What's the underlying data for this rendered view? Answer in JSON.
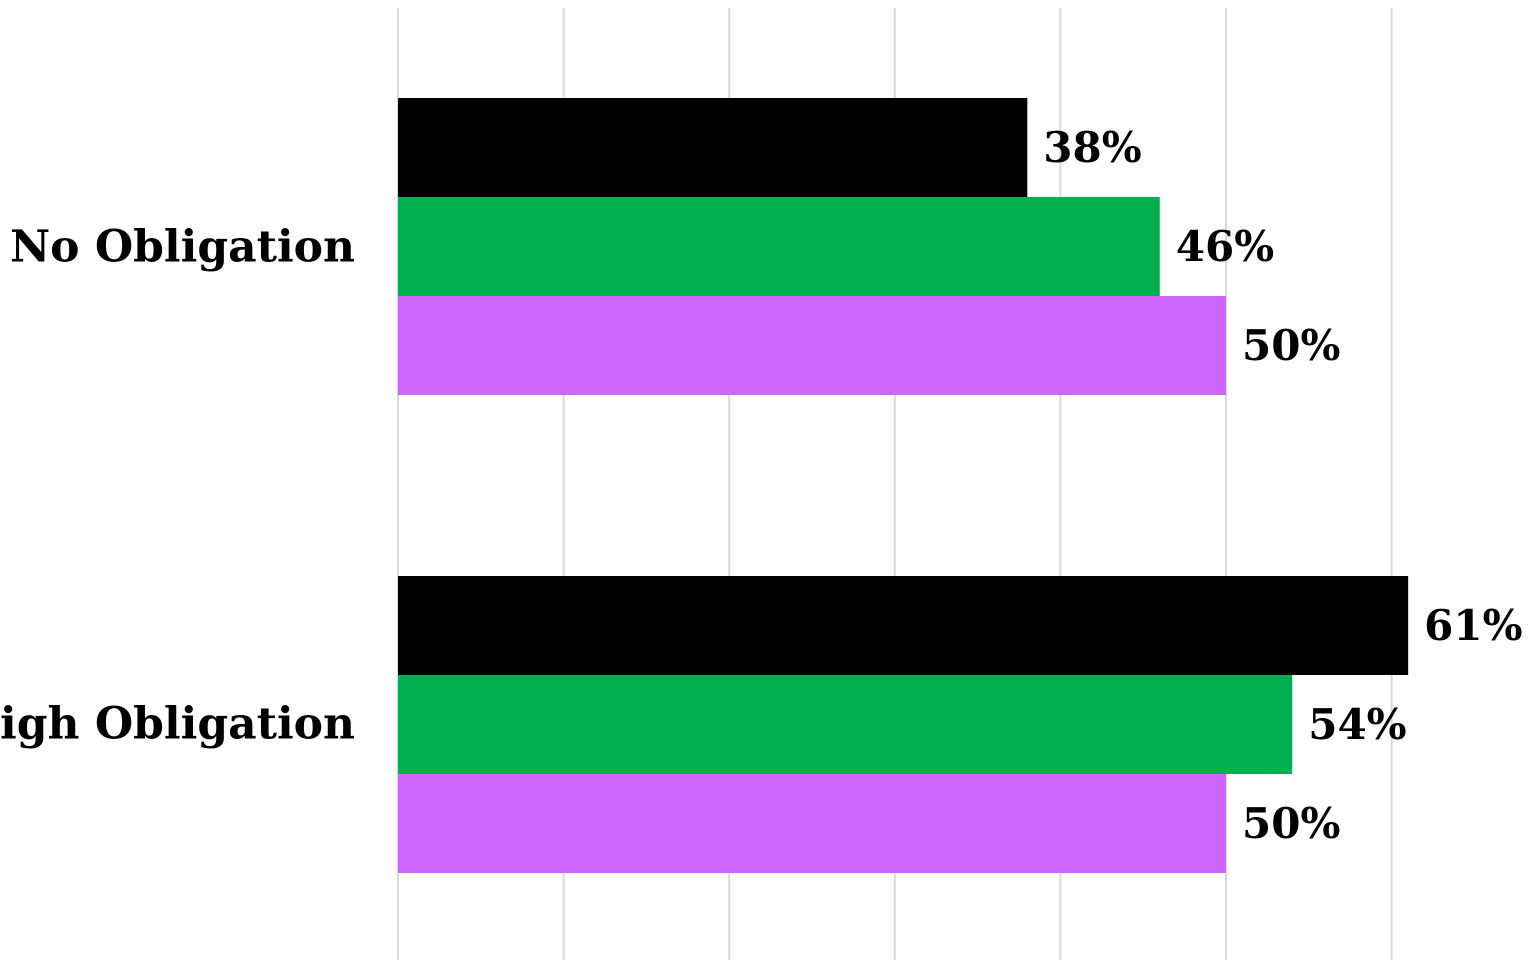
{
  "chart_data": {
    "type": "bar",
    "orientation": "horizontal",
    "categories": [
      "No Obligation",
      "High Obligation"
    ],
    "series": [
      {
        "color": "#000000",
        "values": [
          38,
          61
        ],
        "labels": [
          "38%",
          "61%"
        ]
      },
      {
        "color": "#00b050",
        "values": [
          46,
          54
        ],
        "labels": [
          "46%",
          "54%"
        ]
      },
      {
        "color": "#cc66ff",
        "values": [
          50,
          50
        ],
        "labels": [
          "50%",
          "50%"
        ]
      }
    ],
    "title": "",
    "xlabel": "",
    "ylabel": "",
    "xlim": [
      0,
      61
    ],
    "grid": true,
    "legend": "none"
  }
}
